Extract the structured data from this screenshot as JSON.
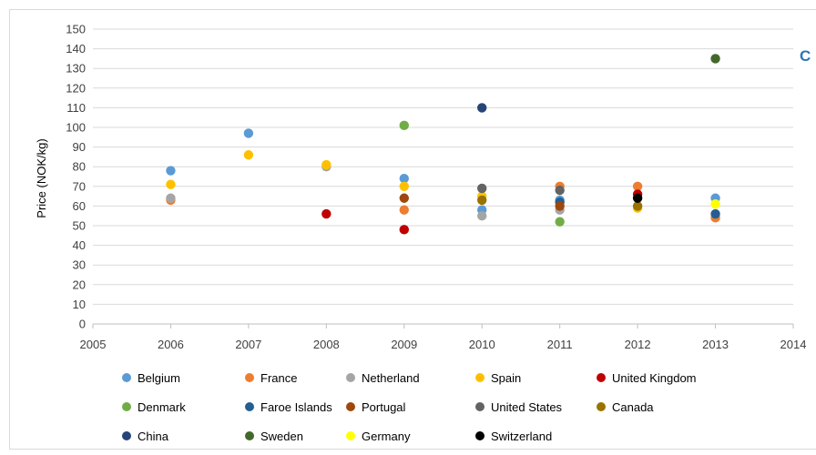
{
  "chart_data": {
    "type": "scatter",
    "title": "",
    "clipped_title_fragment": "C",
    "xlabel": "",
    "ylabel": "Price (NOK/kg)",
    "xlim": [
      2005,
      2014
    ],
    "ylim": [
      0,
      150
    ],
    "x_ticks": [
      "2005",
      "2006",
      "2007",
      "2008",
      "2009",
      "2010",
      "2011",
      "2012",
      "2013",
      "2014"
    ],
    "y_ticks": [
      "0",
      "10",
      "20",
      "30",
      "40",
      "50",
      "60",
      "70",
      "80",
      "90",
      "100",
      "110",
      "120",
      "130",
      "140",
      "150"
    ],
    "grid": "horizontal",
    "legend_position": "bottom",
    "series": [
      {
        "name": "Belgium",
        "color": "#5b9bd5",
        "points": [
          [
            2006,
            78
          ],
          [
            2007,
            97
          ],
          [
            2009,
            74
          ],
          [
            2010,
            58
          ],
          [
            2011,
            63
          ],
          [
            2013,
            64
          ]
        ]
      },
      {
        "name": "France",
        "color": "#ed7d31",
        "points": [
          [
            2006,
            63
          ],
          [
            2009,
            58
          ],
          [
            2011,
            70
          ],
          [
            2012,
            70
          ],
          [
            2013,
            54
          ]
        ]
      },
      {
        "name": "Netherland",
        "color": "#a5a5a5",
        "points": [
          [
            2006,
            64
          ],
          [
            2008,
            80
          ],
          [
            2010,
            55
          ],
          [
            2011,
            58
          ]
        ]
      },
      {
        "name": "Spain",
        "color": "#ffc000",
        "points": [
          [
            2006,
            71
          ],
          [
            2007,
            86
          ],
          [
            2008,
            81
          ],
          [
            2009,
            70
          ],
          [
            2010,
            65
          ],
          [
            2012,
            59
          ]
        ]
      },
      {
        "name": "United Kingdom",
        "color": "#c00000",
        "points": [
          [
            2008,
            56
          ],
          [
            2009,
            48
          ],
          [
            2012,
            66
          ]
        ]
      },
      {
        "name": "Denmark",
        "color": "#70ad47",
        "points": [
          [
            2009,
            101
          ],
          [
            2011,
            52
          ]
        ]
      },
      {
        "name": "Faroe Islands",
        "color": "#255e91",
        "points": [
          [
            2011,
            62
          ],
          [
            2013,
            56
          ]
        ]
      },
      {
        "name": "Portugal",
        "color": "#9e480e",
        "points": [
          [
            2009,
            64
          ],
          [
            2011,
            60
          ]
        ]
      },
      {
        "name": "United States",
        "color": "#636363",
        "points": [
          [
            2010,
            69
          ],
          [
            2011,
            68
          ]
        ]
      },
      {
        "name": "Canada",
        "color": "#997300",
        "points": [
          [
            2010,
            63
          ],
          [
            2012,
            60
          ]
        ]
      },
      {
        "name": "China",
        "color": "#264478",
        "points": [
          [
            2010,
            110
          ]
        ]
      },
      {
        "name": "Sweden",
        "color": "#43682b",
        "points": [
          [
            2013,
            135
          ]
        ]
      },
      {
        "name": "Germany",
        "color": "#ffff00",
        "points": [
          [
            2013,
            61
          ]
        ]
      },
      {
        "name": "Switzerland",
        "color": "#000000",
        "points": [
          [
            2012,
            64
          ]
        ]
      }
    ]
  }
}
